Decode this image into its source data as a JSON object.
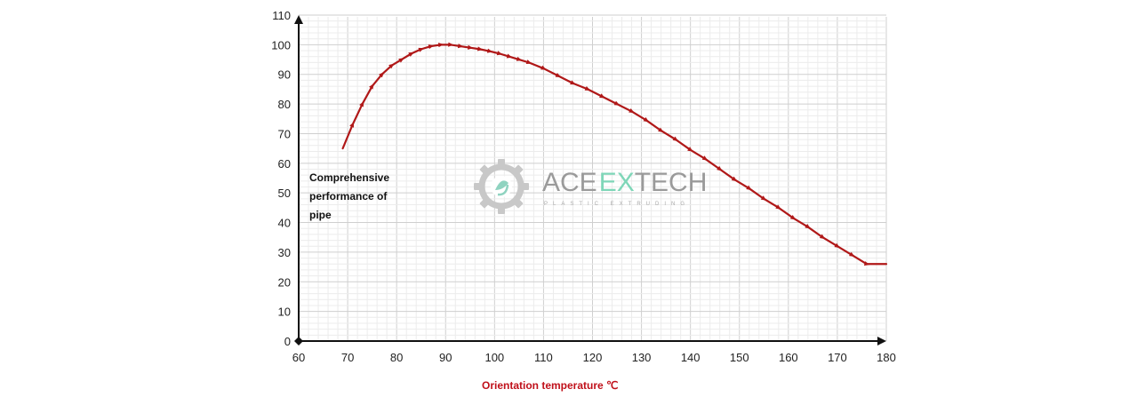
{
  "chart_data": {
    "type": "line",
    "title": "",
    "ylabel_lines": [
      "Comprehensive",
      "performance of",
      "pipe"
    ],
    "xlabel": "Orientation temperature  ℃",
    "xlim": [
      60,
      180
    ],
    "ylim": [
      0,
      110
    ],
    "xticks": [
      60,
      70,
      80,
      90,
      100,
      110,
      120,
      130,
      140,
      150,
      160,
      170,
      180
    ],
    "yticks": [
      0,
      10,
      20,
      30,
      40,
      50,
      60,
      70,
      80,
      90,
      100,
      110
    ],
    "grid": true,
    "series": [
      {
        "color": "#b01818",
        "x": [
          69,
          71,
          73,
          75,
          77,
          79,
          81,
          83,
          85,
          87,
          89,
          91,
          93,
          95,
          97,
          99,
          101,
          103,
          105,
          107,
          110,
          113,
          116,
          119,
          122,
          125,
          128,
          131,
          134,
          137,
          140,
          143,
          146,
          149,
          152,
          155,
          158,
          161,
          164,
          167,
          170,
          173,
          176,
          180
        ],
        "y": [
          65,
          73,
          80,
          86,
          90,
          93,
          95,
          97,
          98.5,
          99.5,
          100,
          100,
          99.5,
          99,
          98.5,
          97.8,
          97,
          96,
          95,
          94,
          92,
          89.5,
          87,
          85,
          82.5,
          80,
          77.5,
          74.5,
          71,
          68,
          64.5,
          61.5,
          58,
          54.5,
          51.5,
          48,
          45,
          41.5,
          38.5,
          35,
          32,
          29,
          26,
          26
        ]
      }
    ]
  },
  "watermark": {
    "brand": "ACE EXTECH",
    "sub": "PLASTIC EXTRUDING",
    "gear_color": "#c8c8c8",
    "leaf_color": "#8fd3c0",
    "accent_color": "#7fd6b8"
  }
}
